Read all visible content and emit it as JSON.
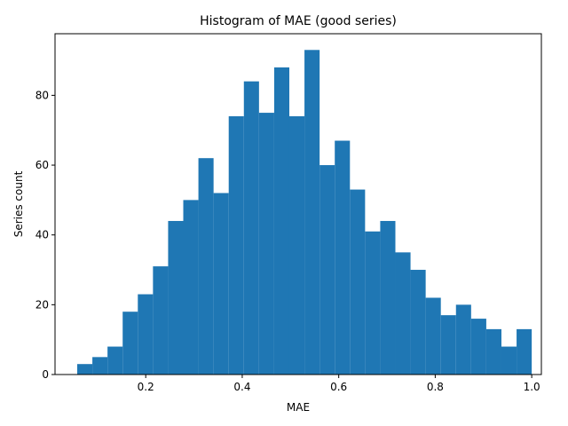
{
  "chart_data": {
    "type": "histogram",
    "title": "Histogram of MAE (good series)",
    "x_label": "MAE",
    "y_label": "Series count",
    "bins": [
      0.058,
      0.0894,
      0.1208,
      0.1522,
      0.1836,
      0.215,
      0.2464,
      0.2778,
      0.3092,
      0.3406,
      0.372,
      0.4034,
      0.4348,
      0.4662,
      0.4976,
      0.529,
      0.5604,
      0.5918,
      0.6232,
      0.6546,
      0.686,
      0.7174,
      0.7488,
      0.7802,
      0.8116,
      0.843,
      0.8744,
      0.9058,
      0.9372,
      0.9686,
      1.0
    ],
    "values": [
      3,
      5,
      8,
      18,
      23,
      31,
      44,
      50,
      62,
      52,
      74,
      84,
      75,
      88,
      74,
      93,
      60,
      67,
      53,
      41,
      44,
      35,
      30,
      22,
      17,
      20,
      16,
      13,
      8,
      13
    ],
    "color": "#1f77b4",
    "xlim": [
      0.012,
      1.02
    ],
    "xticks": [
      0.2,
      0.4,
      0.6,
      0.8,
      {
        "value": 1,
        "label": "1.0"
      }
    ],
    "ylim": [
      0,
      97.65
    ],
    "yticks": [
      0,
      20,
      40,
      60,
      80
    ]
  }
}
